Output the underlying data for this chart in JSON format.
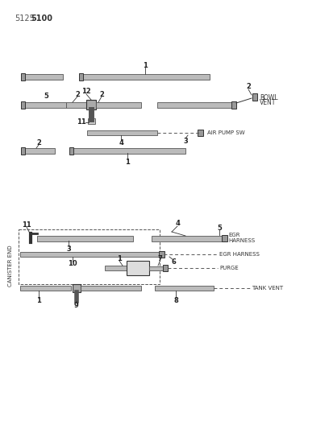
{
  "background_color": "#ffffff",
  "line_color": "#555555",
  "fig_width": 4.08,
  "fig_height": 5.33,
  "dpi": 100,
  "title1": "5125",
  "title2": "5100",
  "canister_label": "CANISTER END",
  "labels": {
    "bowl_vent": "BOWL\nVENT",
    "air_pump_sw": "AIR PUMP SW",
    "egr_harness1": "EGR\nHARNESS",
    "egr_harness2": "EGR HARNESS",
    "purge": "PURGE",
    "tank_vent": "TANK VENT"
  }
}
